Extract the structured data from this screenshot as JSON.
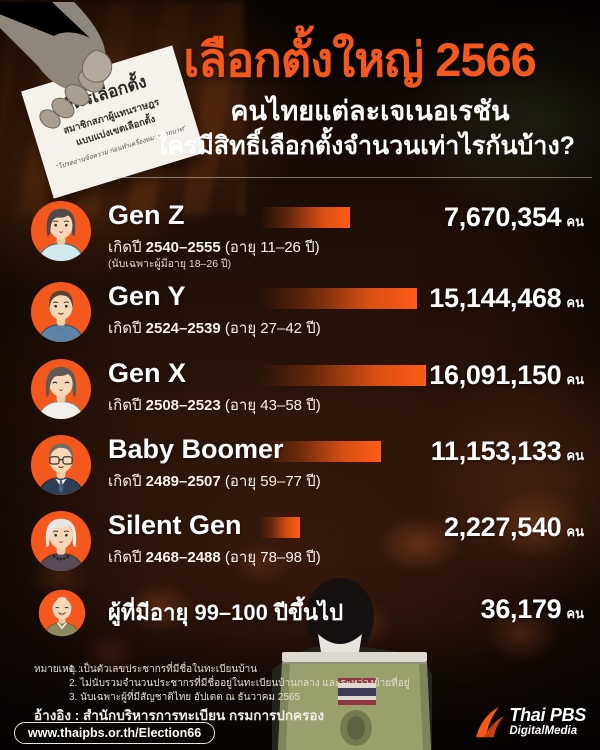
{
  "header": {
    "title": "เลือกตั้งใหญ่ 2566",
    "subtitle": "คนไทยแต่ละเจเนอเรชัน",
    "question": "ใครมีสิทธิ์เลือกตั้งจำนวนเท่าไรกันบ้าง?"
  },
  "ballot_card": {
    "title": "บัตรเลือกตั้ง",
    "line2": "สมาชิกสภาผู้แทนราษฎร",
    "line3": "แบบแบ่งเขตเลือกตั้ง",
    "caption": "\"โปรดอ่านข้อความ ก่อนทำเครื่องหมายกากบาท\""
  },
  "chart_data": {
    "type": "bar",
    "orientation": "horizontal",
    "title": "เลือกตั้งใหญ่ 2566 คนไทยแต่ละเจเนอเรชัน ใครมีสิทธิ์เลือกตั้งจำนวนเท่าไรกันบ้าง?",
    "unit": "คน",
    "xlim": [
      0,
      16091150
    ],
    "max_value": 16091150,
    "rows": [
      {
        "name": "Gen Z",
        "birth_prefix": "เกิดปี",
        "years": "2540–2555",
        "age": "(อายุ 11–26 ปี)",
        "note": "(นับเฉพาะผู้มีอายุ 18–26 ปี)",
        "value": 7670354,
        "value_label": "7,670,354",
        "avatar": "young-woman",
        "show_bar": true
      },
      {
        "name": "Gen Y",
        "birth_prefix": "เกิดปี",
        "years": "2524–2539",
        "age": "(อายุ 27–42 ปี)",
        "value": 15144468,
        "value_label": "15,144,468",
        "avatar": "young-man",
        "show_bar": true
      },
      {
        "name": "Gen X",
        "birth_prefix": "เกิดปี",
        "years": "2508–2523",
        "age": "(อายุ 43–58 ปี)",
        "value": 16091150,
        "value_label": "16,091,150",
        "avatar": "middle-aged-woman",
        "show_bar": true
      },
      {
        "name": "Baby Boomer",
        "birth_prefix": "เกิดปี",
        "years": "2489–2507",
        "age": "(อายุ 59–77 ปี)",
        "value": 11153133,
        "value_label": "11,153,133",
        "avatar": "older-man-glasses",
        "show_bar": true
      },
      {
        "name": "Silent Gen",
        "birth_prefix": "เกิดปี",
        "years": "2468–2488",
        "age": "(อายุ 78–98 ปี)",
        "value": 2227540,
        "value_label": "2,227,540",
        "avatar": "elderly-woman",
        "show_bar": true
      },
      {
        "name": "ผู้ที่มีอายุ 99–100 ปีขึ้นไป",
        "value": 36179,
        "value_label": "36,179",
        "avatar": "elderly-man",
        "show_bar": false
      }
    ]
  },
  "footer": {
    "notes_label": "หมายเหตุ :",
    "notes": [
      "1. เป็นตัวเลขประชากรที่มีชื่อในทะเบียนบ้าน",
      "2. ไม่นับรวมจำนวนประชากรที่มีชื่ออยู่ในทะเบียนบ้านกลาง และระหว่างย้ายที่อยู่",
      "3. นับเฉพาะผู้ที่มีสัญชาติไทย อัปเดต ณ ธันวาคม 2565"
    ],
    "reference": "อ้างอิง : สำนักบริหารการทะเบียน กรมการปกครอง",
    "url": "www.thaipbs.or.th/Election66",
    "logo_line1": "Thai PBS",
    "logo_line2": "DigitalMedia"
  },
  "colors": {
    "accent_orange": "#F4581C",
    "bar_bright": "#FF5C17",
    "background_dark": "#1D0E07"
  }
}
